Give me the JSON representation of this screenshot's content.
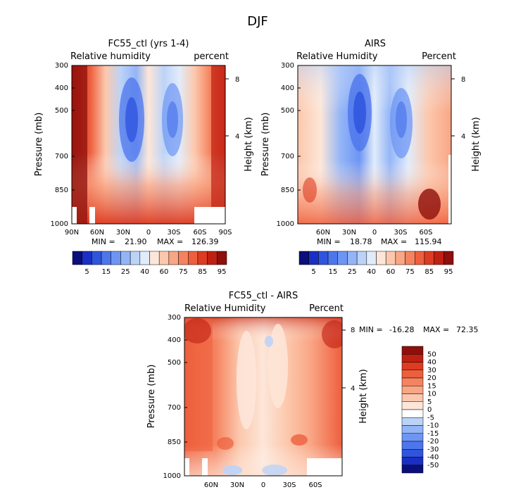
{
  "page": {
    "title": "DJF"
  },
  "chart_data": [
    {
      "type": "heatmap",
      "title": "FC55_ctl (yrs 1-4)",
      "subtitle_left": "Relative humidity",
      "subtitle_right": "percent",
      "ylabel": "Pressure (mb)",
      "ylabel_right": "Height (km)",
      "y_ticks": [
        "300",
        "400",
        "500",
        "700",
        "850",
        "1000"
      ],
      "y_right_ticks": [
        "8",
        "4"
      ],
      "x_ticks": [
        "90N",
        "60N",
        "30N",
        "0",
        "30S",
        "60S",
        "90S"
      ],
      "min_label": "MIN =",
      "min_value": "21.90",
      "max_label": "MAX =",
      "max_value": "126.39",
      "colorbar_labels": [
        "5",
        "15",
        "25",
        "40",
        "60",
        "75",
        "85",
        "95"
      ],
      "colorbar_colors": [
        "#0b0f7a",
        "#1a2fc4",
        "#2f55de",
        "#4e76ec",
        "#6d95f3",
        "#93b5f7",
        "#bcd3f8",
        "#e1ecfb",
        "#fde6d8",
        "#fcc8ad",
        "#f9a685",
        "#f5835f",
        "#ee5f3d",
        "#dd3b22",
        "#c02012",
        "#8e0f0b"
      ]
    },
    {
      "type": "heatmap",
      "title": "AIRS",
      "subtitle_left": "Relative Humidity",
      "subtitle_right": "Percent",
      "ylabel": "Pressure (mb)",
      "ylabel_right": "Height (km)",
      "y_ticks": [
        "300",
        "400",
        "500",
        "700",
        "850",
        "1000"
      ],
      "y_right_ticks": [
        "8",
        "4"
      ],
      "x_ticks": [
        "60N",
        "30N",
        "0",
        "30S",
        "60S"
      ],
      "min_label": "MIN =",
      "min_value": "18.78",
      "max_label": "MAX =",
      "max_value": "115.94",
      "colorbar_labels": [
        "5",
        "15",
        "25",
        "40",
        "60",
        "75",
        "85",
        "95"
      ],
      "colorbar_colors": [
        "#0b0f7a",
        "#1a2fc4",
        "#2f55de",
        "#4e76ec",
        "#6d95f3",
        "#93b5f7",
        "#bcd3f8",
        "#e1ecfb",
        "#fde6d8",
        "#fcc8ad",
        "#f9a685",
        "#f5835f",
        "#ee5f3d",
        "#dd3b22",
        "#c02012",
        "#8e0f0b"
      ]
    },
    {
      "type": "heatmap",
      "title": "FC55_ctl - AIRS",
      "subtitle_left": "Relative Humidity",
      "subtitle_right": "Percent",
      "ylabel": "Pressure (mb)",
      "ylabel_right": "Height (km)",
      "y_ticks": [
        "300",
        "400",
        "500",
        "700",
        "850",
        "1000"
      ],
      "y_right_ticks": [
        "8",
        "4"
      ],
      "x_ticks": [
        "60N",
        "30N",
        "0",
        "30S",
        "60S"
      ],
      "min_label": "MIN =",
      "min_value": "-16.28",
      "max_label": "MAX =",
      "max_value": "72.35",
      "colorbar_labels": [
        "50",
        "40",
        "30",
        "20",
        "15",
        "10",
        "5",
        "0",
        "-5",
        "-10",
        "-15",
        "-20",
        "-30",
        "-40",
        "-50"
      ],
      "colorbar_colors": [
        "#8e0f0b",
        "#c02012",
        "#dd3b22",
        "#ee5f3d",
        "#f5835f",
        "#f9a685",
        "#fcc8ad",
        "#fde6d8",
        "#ffffff",
        "#bcd3f8",
        "#93b5f7",
        "#6d95f3",
        "#4e76ec",
        "#2f55de",
        "#1a2fc4",
        "#0b0f7a"
      ]
    }
  ]
}
